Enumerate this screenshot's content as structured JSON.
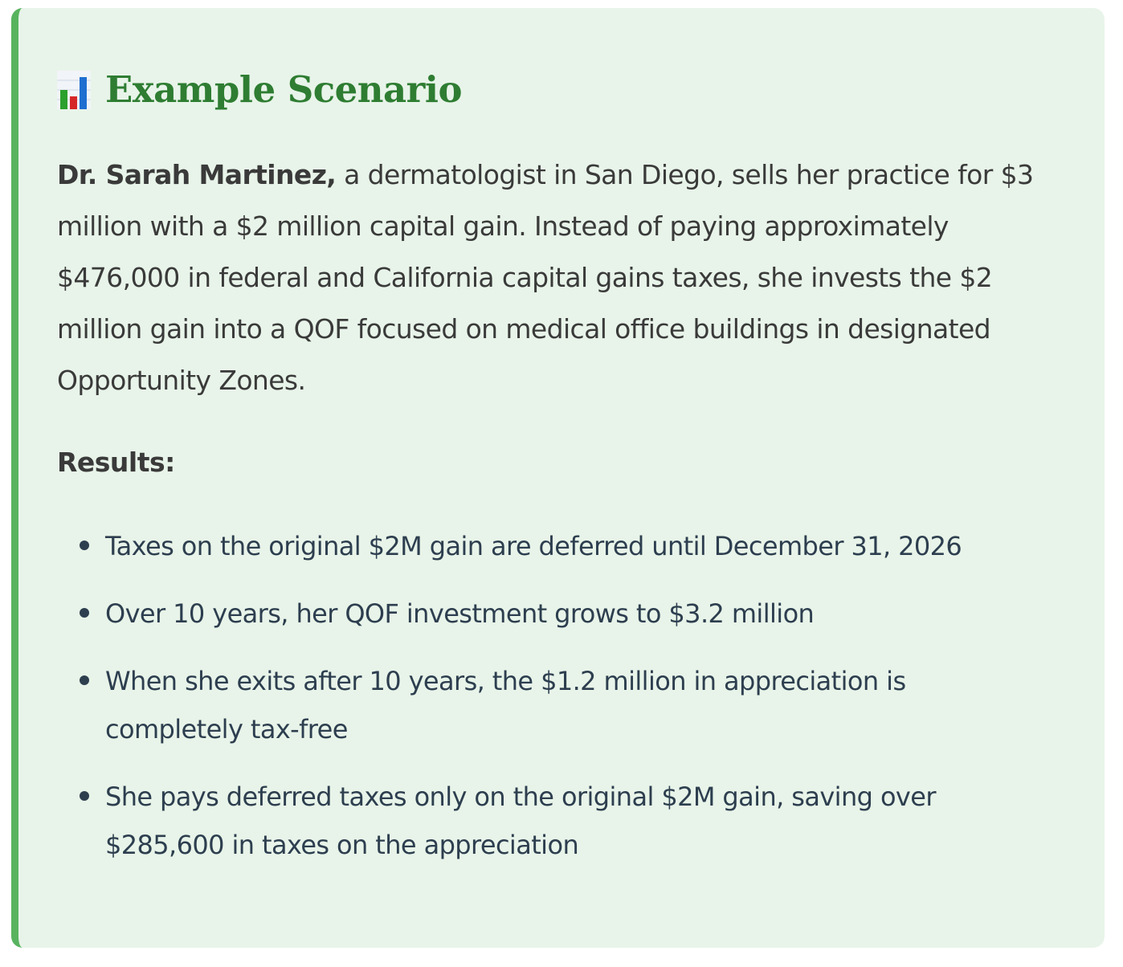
{
  "card": {
    "icon": "bar-chart-icon",
    "title": "Example Scenario",
    "intro_bold": "Dr. Sarah Martinez,",
    "intro_text": " a dermatologist in San Diego, sells her practice for $3 million with a $2 million capital gain. Instead of paying approximately $476,000 in federal and California capital gains taxes, she invests the $2 million gain into a QOF focused on medical office buildings in designated Opportunity Zones.",
    "results_label": "Results:",
    "results": [
      "Taxes on the original $2M gain are deferred until December 31, 2026",
      "Over 10 years, her QOF investment grows to $3.2 million",
      "When she exits after 10 years, the $1.2 million in appreciation is completely tax-free",
      "She pays deferred taxes only on the original $2M gain, saving over $285,600 in taxes on the appreciation"
    ]
  },
  "colors": {
    "card_background": "#e8f4e9",
    "accent_border": "#58b35e",
    "title": "#2e7d32",
    "body_text": "#3a3a3a",
    "list_text": "#2d3e4f"
  }
}
